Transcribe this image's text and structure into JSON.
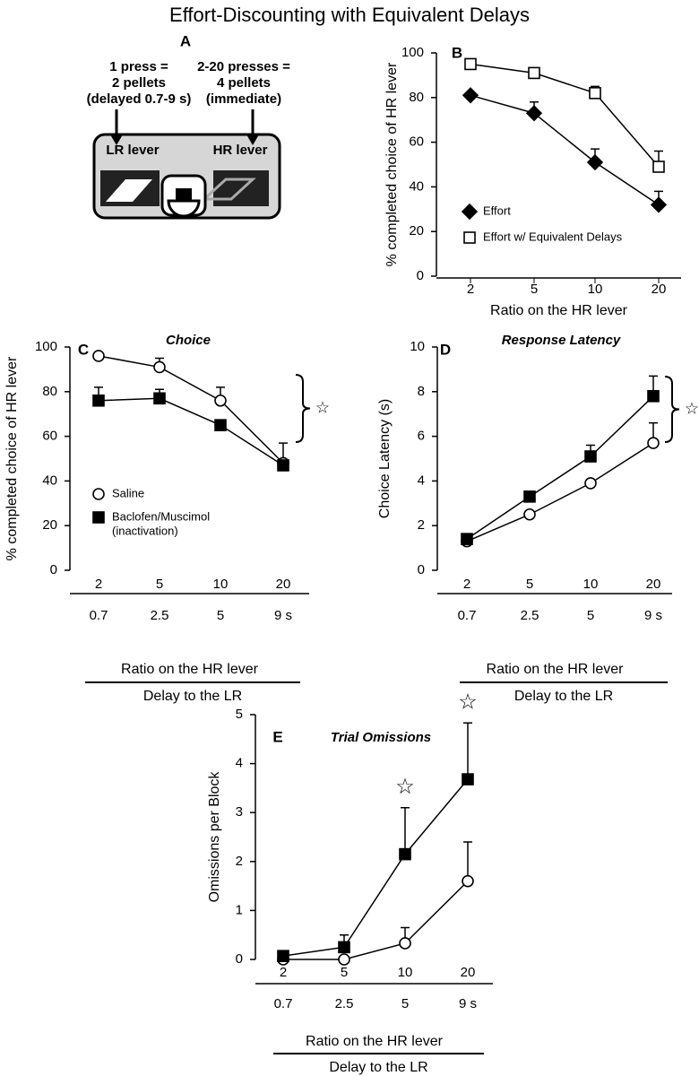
{
  "title": "Effort-Discounting with Equivalent Delays",
  "panel_a": {
    "label": "A",
    "left_text": [
      "1 press =",
      "2 pellets",
      "(delayed 0.7-9 s)"
    ],
    "right_text": [
      "2-20 presses =",
      "4 pellets",
      "(immediate)"
    ],
    "left_lever": "LR lever",
    "right_lever": "HR lever"
  },
  "chart_data": [
    {
      "type": "line",
      "panel_label": "B",
      "ylabel": "% completed choice of HR lever",
      "xlabel": "Ratio on the HR lever",
      "categories": [
        "2",
        "5",
        "10",
        "20"
      ],
      "ylim": [
        0,
        100
      ],
      "yticks": [
        0,
        20,
        40,
        60,
        80,
        100
      ],
      "series": [
        {
          "name": "Effort",
          "marker": "diamond",
          "color": "#000000",
          "values": [
            81,
            73,
            51,
            32
          ],
          "errors": [
            0,
            5,
            6,
            6
          ]
        },
        {
          "name": "Effort w/ Equivalent Delays",
          "marker": "square",
          "color": "#ffffff",
          "values": [
            95,
            91,
            82,
            49
          ],
          "errors": [
            0,
            0,
            3,
            7
          ]
        }
      ]
    },
    {
      "type": "line",
      "panel_label": "C",
      "title": "Choice",
      "ylabel": "% completed choice of HR lever",
      "xlabel": "Ratio on the HR lever",
      "xlabel2": "Delay to the LR",
      "categories": [
        "2",
        "5",
        "10",
        "20"
      ],
      "categories2": [
        "0.7",
        "2.5",
        "5",
        "9 s"
      ],
      "ylim": [
        0,
        100
      ],
      "yticks": [
        0,
        20,
        40,
        60,
        80,
        100
      ],
      "bracket_marker": "☆",
      "series": [
        {
          "name": "Saline",
          "marker": "circle",
          "color": "#ffffff",
          "values": [
            96,
            91,
            76,
            48
          ],
          "errors": [
            0,
            4,
            6,
            0
          ]
        },
        {
          "name": "Baclofen/Muscimol",
          "note": "(inactivation)",
          "marker": "square",
          "color": "#000000",
          "values": [
            76,
            77,
            65,
            47
          ],
          "errors": [
            6,
            4,
            0,
            10
          ]
        }
      ]
    },
    {
      "type": "line",
      "panel_label": "D",
      "title": "Response Latency",
      "ylabel": "Choice Latency (s)",
      "xlabel": "Ratio on the HR lever",
      "xlabel2": "Delay to the LR",
      "categories": [
        "2",
        "5",
        "10",
        "20"
      ],
      "categories2": [
        "0.7",
        "2.5",
        "5",
        "9 s"
      ],
      "ylim": [
        0,
        10
      ],
      "yticks": [
        0,
        2,
        4,
        6,
        8,
        10
      ],
      "bracket_marker": "☆",
      "series": [
        {
          "name": "Saline",
          "marker": "circle",
          "color": "#ffffff",
          "values": [
            1.3,
            2.5,
            3.9,
            5.7
          ],
          "errors": [
            0,
            0,
            0,
            0.9
          ]
        },
        {
          "name": "Baclofen/Muscimol",
          "marker": "square",
          "color": "#000000",
          "values": [
            1.4,
            3.3,
            5.1,
            7.8
          ],
          "errors": [
            0,
            0.1,
            0.5,
            0.9
          ]
        }
      ]
    },
    {
      "type": "line",
      "panel_label": "E",
      "title": "Trial Omissions",
      "ylabel": "Omissions per Block",
      "xlabel": "Ratio on the HR lever",
      "xlabel2": "Delay to the LR",
      "categories": [
        "2",
        "5",
        "10",
        "20"
      ],
      "categories2": [
        "0.7",
        "2.5",
        "5",
        "9 s"
      ],
      "ylim": [
        0,
        5
      ],
      "yticks": [
        0,
        1,
        2,
        3,
        4,
        5
      ],
      "significance_marker": "☆",
      "significant": [
        false,
        false,
        true,
        true
      ],
      "series": [
        {
          "name": "Saline",
          "marker": "circle",
          "color": "#ffffff",
          "values": [
            0,
            0,
            0.33,
            1.6
          ],
          "errors": [
            0,
            0,
            0.32,
            0.8
          ]
        },
        {
          "name": "Baclofen/Muscimol",
          "marker": "square",
          "color": "#000000",
          "values": [
            0.07,
            0.25,
            2.15,
            3.68
          ],
          "errors": [
            0,
            0.25,
            0.95,
            1.15
          ]
        }
      ]
    }
  ]
}
